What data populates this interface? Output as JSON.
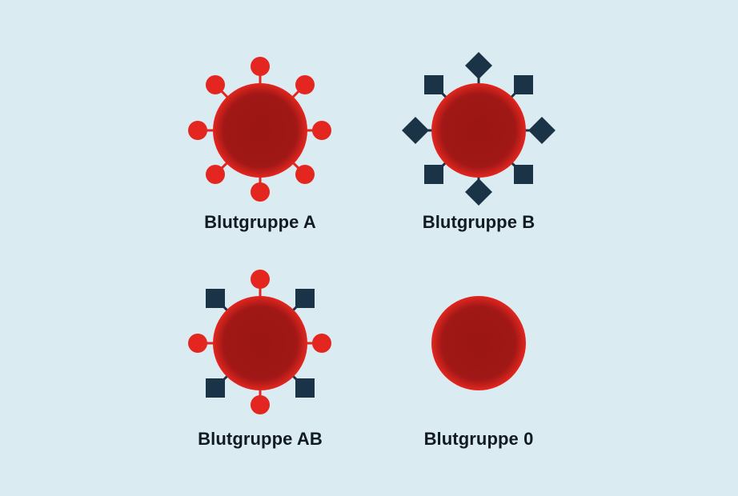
{
  "colors": {
    "background": "#daecf1",
    "cell_outer": "#e3261f",
    "cell_inner": "#9b1614",
    "antigen_a": "#e3261f",
    "antigen_b": "#1b3346",
    "label": "#121a23"
  },
  "groups": [
    {
      "id": "a",
      "label": "Blutgruppe A",
      "antigens": "a-type"
    },
    {
      "id": "b",
      "label": "Blutgruppe B",
      "antigens": "b-type"
    },
    {
      "id": "ab",
      "label": "Blutgruppe AB",
      "antigens": "a-and-b-type"
    },
    {
      "id": "o",
      "label": "Blutgruppe 0",
      "antigens": "none"
    }
  ]
}
